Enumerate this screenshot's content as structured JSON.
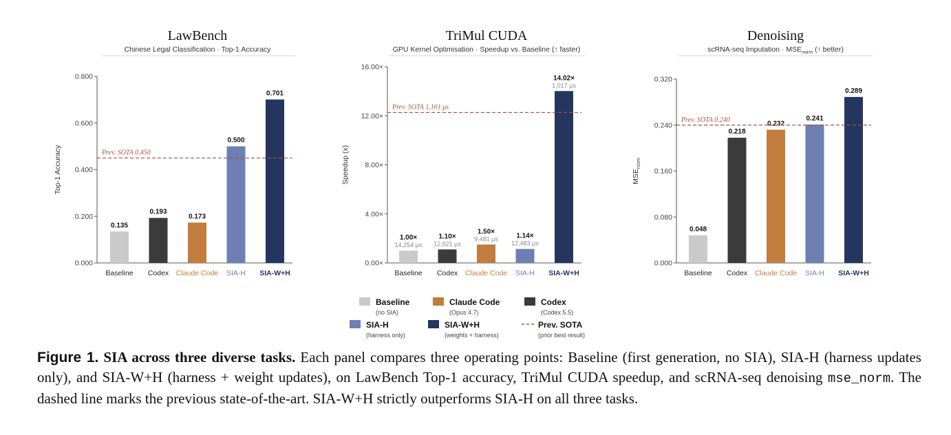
{
  "chart_data": [
    {
      "type": "bar",
      "title": "LawBench",
      "subtitle": "Chinese Legal Classification · Top-1 Accuracy",
      "ylabel": "Top-1 Accuracy",
      "ylim": [
        0,
        0.8
      ],
      "yticks": [
        "0.000",
        "0.200",
        "0.400",
        "0.600",
        "0.800"
      ],
      "ytick_values": [
        0,
        0.2,
        0.4,
        0.6,
        0.8
      ],
      "categories": [
        "Baseline",
        "Codex",
        "Claude Code",
        "SIA-H",
        "SIA-W+H"
      ],
      "values": [
        0.135,
        0.193,
        0.173,
        0.5,
        0.701
      ],
      "value_labels": [
        "0.135",
        "0.193",
        "0.173",
        "0.500",
        "0.701"
      ],
      "sub_labels": [],
      "reference": {
        "value": 0.45,
        "label": "Prev. SOTA  0.450"
      },
      "grid": false
    },
    {
      "type": "bar",
      "title": "TriMul CUDA",
      "subtitle": "GPU Kernel Optimisation · Speedup vs. Baseline (↑ faster)",
      "ylabel": "Speedup (x)",
      "ylim": [
        0,
        16
      ],
      "yticks": [
        "0.00×",
        "4.00×",
        "8.00×",
        "12.00×",
        "16.00×"
      ],
      "ytick_values": [
        0,
        4,
        8,
        12,
        16
      ],
      "categories": [
        "Baseline",
        "Codex",
        "Claude Code",
        "SIA-H",
        "SIA-W+H"
      ],
      "values": [
        1.0,
        1.1,
        1.5,
        1.14,
        14.02
      ],
      "value_labels": [
        "1.00×",
        "1.10×",
        "1.50×",
        "1.14×",
        "14.02×"
      ],
      "sub_labels": [
        "14,254 μs",
        "12,921 μs",
        "9,481 μs",
        "12,483 μs",
        "1,017 μs"
      ],
      "reference": {
        "value": 12.27,
        "label": "Prev. SOTA  1,161 μs"
      },
      "grid": false
    },
    {
      "type": "bar",
      "title": "Denoising",
      "subtitle": "scRNA-seq Imputation · MSE",
      "subtitle_sub": "norm",
      "subtitle_tail": " (↑ better)",
      "ylabel": "MSE",
      "ylabel_sub": "norm",
      "ylim": [
        0,
        0.32
      ],
      "yticks": [
        "0.000",
        "0.080",
        "0.160",
        "0.240",
        "0.320"
      ],
      "ytick_values": [
        0,
        0.08,
        0.16,
        0.24,
        0.32
      ],
      "categories": [
        "Baseline",
        "Codex",
        "Claude Code",
        "SIA-H",
        "SIA-W+H"
      ],
      "values": [
        0.048,
        0.218,
        0.232,
        0.241,
        0.289
      ],
      "value_labels": [
        "0.048",
        "0.218",
        "0.232",
        "0.241",
        "0.289"
      ],
      "sub_labels": [],
      "reference": {
        "value": 0.24,
        "label": "Prev. SOTA  0.240"
      },
      "grid": false
    }
  ],
  "categories_style": {
    "Baseline": {
      "color": "#cacaca",
      "label_color": "#222222",
      "bold": false
    },
    "Codex": {
      "color": "#3b3b3b",
      "label_color": "#222222",
      "bold": false
    },
    "Claude Code": {
      "color": "#c27c3d",
      "label_color": "#c27c3d",
      "bold": false
    },
    "SIA-H": {
      "color": "#6e80b3",
      "label_color": "#6e80b3",
      "bold": false
    },
    "SIA-W+H": {
      "color": "#243660",
      "label_color": "#243660",
      "bold": true
    }
  },
  "reference_color": "#a9523e",
  "legend": {
    "placement": "bottom-center",
    "items": [
      {
        "name": "Baseline",
        "sub": "(no SIA)",
        "color": "#cacaca",
        "kind": "box"
      },
      {
        "name": "Claude Code",
        "sub": "(Opus 4.7)",
        "color": "#c27c3d",
        "kind": "box"
      },
      {
        "name": "Codex",
        "sub": "(Codex 5.5)",
        "color": "#3b3b3b",
        "kind": "box"
      },
      {
        "name": "SIA-H",
        "sub": "(harness only)",
        "color": "#6e80b3",
        "kind": "box"
      },
      {
        "name": "SIA-W+H",
        "sub": "(weights + harness)",
        "color": "#243660",
        "kind": "box"
      },
      {
        "name": "Prev. SOTA",
        "sub": "(prior best result)",
        "color": "#a9523e",
        "kind": "dash"
      }
    ]
  },
  "caption": {
    "lead": "Figure 1.",
    "lead_title": " SIA across three diverse tasks.",
    "body_1": " Each panel compares three operating points: Baseline (first generation, no SIA), SIA-H (harness updates only), and SIA-W+H (harness + weight updates), on LawBench Top-1 accuracy, TriMul CUDA speedup, and scRNA-seq denoising ",
    "code": "mse_norm",
    "body_2": ". The dashed line marks the previous state-of-the-art. SIA-W+H strictly outperforms SIA-H on all three tasks."
  }
}
